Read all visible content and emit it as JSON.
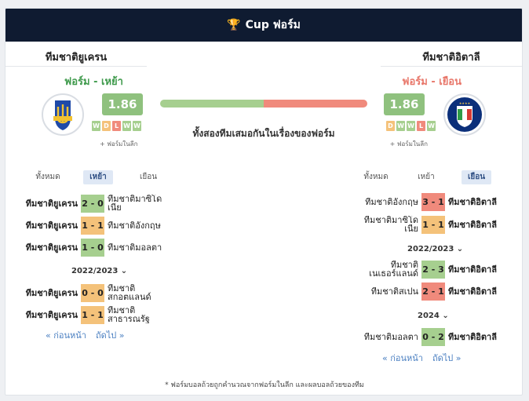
{
  "header": {
    "title": "Cup ฟอร์ม",
    "icon": "trophy-icon"
  },
  "home": {
    "name": "ทีมชาติยูเครน",
    "form_label": "ฟอร์ม - เหย้า",
    "rating": "1.86",
    "form": [
      "W",
      "D",
      "L",
      "W",
      "W"
    ],
    "more_form": "+ ฟอร์มในลีก",
    "tabs": [
      "ทั้งหมด",
      "เหย้า",
      "เยือน"
    ],
    "active_tab": 1,
    "matches_top": [
      {
        "home": "ทีมชาติยูเครน",
        "score": "2 - 0",
        "away": "ทีมชาติมาซิโดเนีย",
        "result": "W"
      },
      {
        "home": "ทีมชาติยูเครน",
        "score": "1 - 1",
        "away": "ทีมชาติอังกฤษ",
        "result": "D"
      },
      {
        "home": "ทีมชาติยูเครน",
        "score": "1 - 0",
        "away": "ทีมชาติมอลตา",
        "result": "W"
      }
    ],
    "season": "2022/2023",
    "matches_season": [
      {
        "home": "ทีมชาติยูเครน",
        "score": "0 - 0",
        "away": "ทีมชาติสกอตแลนด์",
        "result": "D"
      },
      {
        "home": "ทีมชาติยูเครน",
        "score": "1 - 1",
        "away": "ทีมชาติสาธารณรัฐ",
        "result": "D"
      }
    ],
    "prev": "« ก่อนหน้า",
    "next": "ถัดไป »"
  },
  "away": {
    "name": "ทีมชาติอิตาลี",
    "form_label": "ฟอร์ม - เยือน",
    "rating": "1.86",
    "form": [
      "D",
      "W",
      "W",
      "L",
      "W"
    ],
    "more_form": "+ ฟอร์มในลีก",
    "tabs": [
      "ทั้งหมด",
      "เหย้า",
      "เยือน"
    ],
    "active_tab": 2,
    "matches_top": [
      {
        "home": "ทีมชาติอังกฤษ",
        "score": "3 - 1",
        "away": "ทีมชาติอิตาลี",
        "result": "L"
      },
      {
        "home": "ทีมชาติมาซิโดเนีย",
        "score": "1 - 1",
        "away": "ทีมชาติอิตาลี",
        "result": "D"
      }
    ],
    "season": "2022/2023",
    "matches_season": [
      {
        "home": "ทีมชาติเนเธอร์แลนด์",
        "score": "2 - 3",
        "away": "ทีมชาติอิตาลี",
        "result": "W"
      },
      {
        "home": "ทีมชาติสเปน",
        "score": "2 - 1",
        "away": "ทีมชาติอิตาลี",
        "result": "L"
      }
    ],
    "season2": "2024",
    "matches_season2": [
      {
        "home": "ทีมชาติมอลตา",
        "score": "0 - 2",
        "away": "ทีมชาติอิตาลี",
        "result": "W"
      }
    ],
    "prev": "« ก่อนหน้า",
    "next": "ถัดไป »"
  },
  "comparison": {
    "text": "ทั้งสองทีมเสมอกันในเรื่องของฟอร์ม",
    "home_share": 0.5
  },
  "footnote": "* ฟอร์มบอลถ้วยถูกคำนวณจากฟอร์มในลีก และผลบอลถ้วยของทีม"
}
